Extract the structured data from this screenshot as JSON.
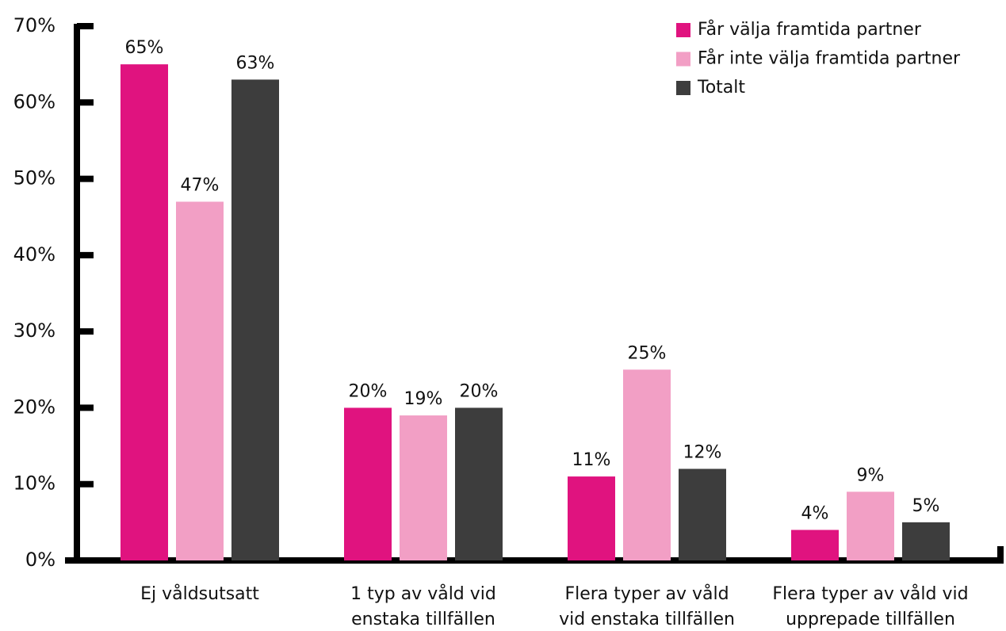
{
  "chart_data": {
    "type": "bar",
    "categories": [
      [
        "Ej våldsutsatt"
      ],
      [
        "1 typ av våld vid",
        "enstaka tillfällen"
      ],
      [
        "Flera typer av våld",
        "vid enstaka tillfällen"
      ],
      [
        "Flera typer av våld vid",
        "upprepade tillfällen"
      ]
    ],
    "series": [
      {
        "name": "Får välja framtida partner",
        "color": "#e0137f",
        "values": [
          65,
          20,
          11,
          4
        ],
        "value_labels": [
          "65%",
          "20%",
          "11%",
          "4%"
        ]
      },
      {
        "name": "Får inte välja framtida partner",
        "color": "#f29fc5",
        "values": [
          47,
          19,
          25,
          9
        ],
        "value_labels": [
          "47%",
          "19%",
          "25%",
          "9%"
        ]
      },
      {
        "name": "Totalt",
        "color": "#3d3d3d",
        "values": [
          63,
          20,
          12,
          5
        ],
        "value_labels": [
          "63%",
          "20%",
          "12%",
          "5%"
        ]
      }
    ],
    "ylim": [
      0,
      70
    ],
    "yticks": [
      {
        "value": 0,
        "label": "0%"
      },
      {
        "value": 10,
        "label": "10%"
      },
      {
        "value": 20,
        "label": "20%"
      },
      {
        "value": 30,
        "label": "30%"
      },
      {
        "value": 40,
        "label": "40%"
      },
      {
        "value": 50,
        "label": "50%"
      },
      {
        "value": 60,
        "label": "60%"
      },
      {
        "value": 70,
        "label": "70%"
      }
    ],
    "legend": "top-right"
  }
}
